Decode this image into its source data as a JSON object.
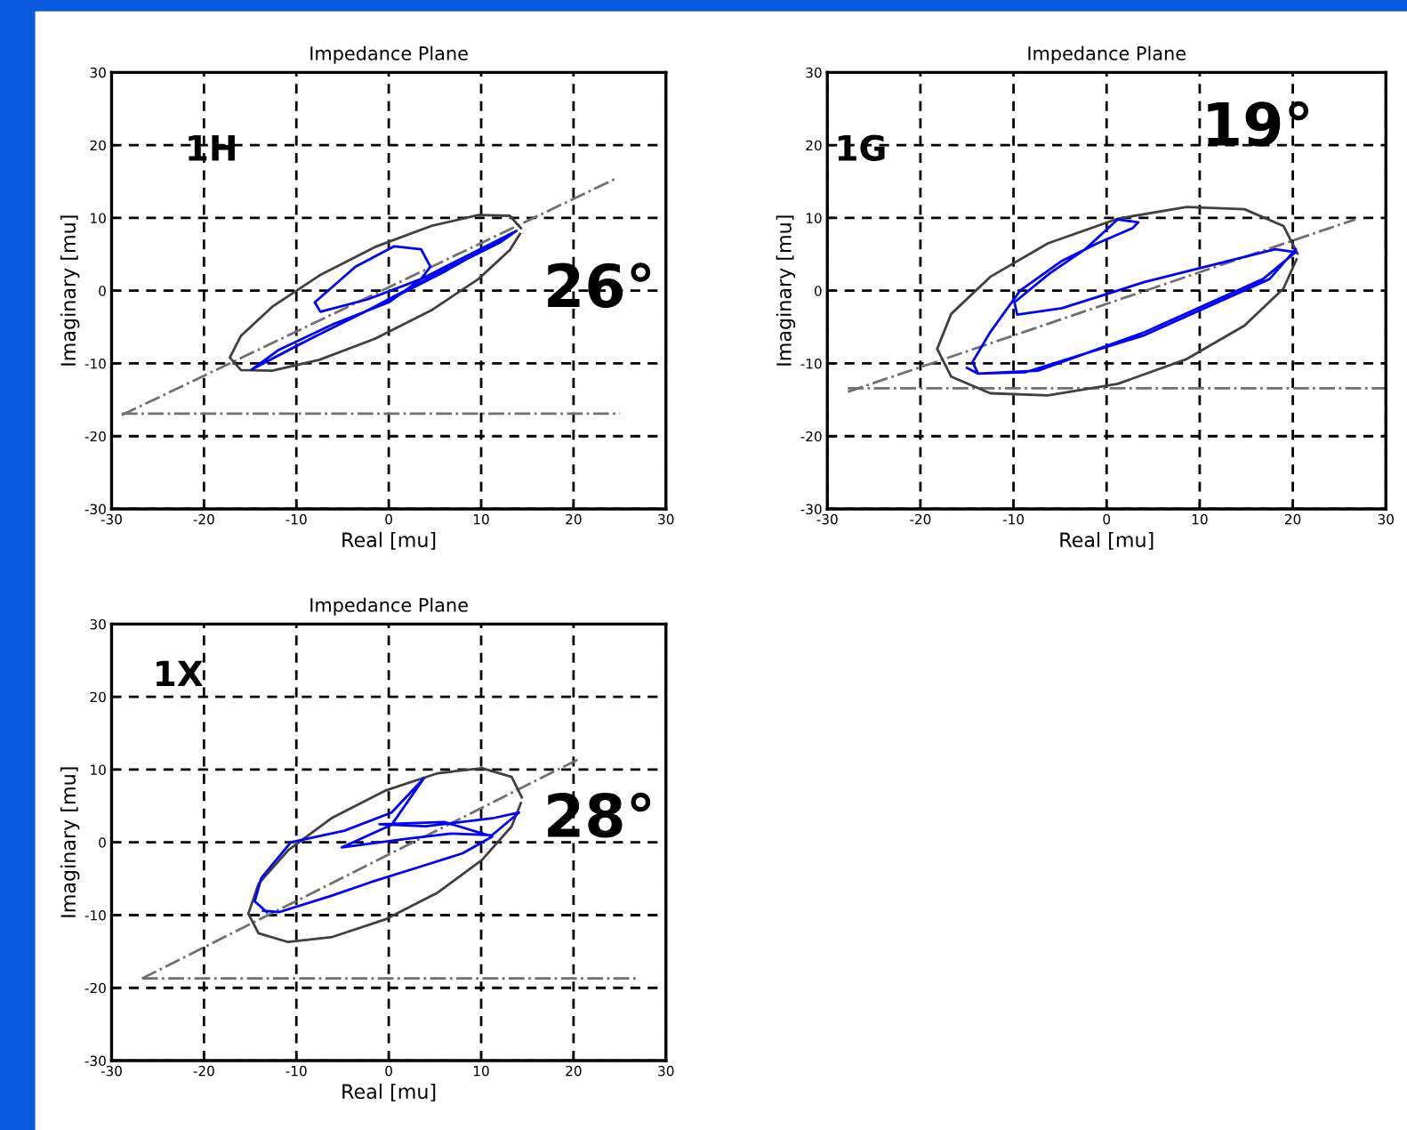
{
  "chart_data": [
    {
      "type": "line",
      "title": "Impedance Plane",
      "xlabel": "Real [mu]",
      "ylabel": "Imaginary [mu]",
      "annotations": [
        "1H",
        "26°"
      ],
      "xlim": [
        -30,
        30
      ],
      "ylim": [
        -30,
        30
      ],
      "xticks": [
        -30,
        -20,
        -10,
        0,
        10,
        20,
        30
      ],
      "yticks": [
        -30,
        -20,
        -10,
        0,
        10,
        20,
        30
      ],
      "grid": true,
      "series": [
        {
          "type": "line",
          "color": "#707070",
          "line_style": "dashed",
          "x": [
            -28.9,
            24.4
          ],
          "values": [
            -17.1,
            15.3
          ]
        },
        {
          "type": "line",
          "color": "#707070",
          "line_style": "dashed",
          "x": [
            -28.9,
            25.0
          ],
          "values": [
            -16.9,
            -16.9
          ]
        },
        {
          "type": "line",
          "color": "#404040",
          "line_style": "solid",
          "x": [
            14.3,
            13.1,
            9.7,
            4.6,
            -1.5,
            -7.5,
            -12.6,
            -16.0,
            -17.2,
            -16.0,
            -12.6,
            -7.5,
            -1.5,
            4.6,
            9.7,
            13.1,
            14.2
          ],
          "values": [
            8.6,
            10.3,
            10.4,
            8.9,
            6.0,
            2.1,
            -2.2,
            -6.2,
            -9.2,
            -10.9,
            -11.0,
            -9.5,
            -6.6,
            -2.7,
            1.6,
            5.6,
            7.8
          ]
        },
        {
          "type": "line",
          "color": "#0000ff",
          "line_style": "solid",
          "x": [
            -14.8,
            -8.0,
            0.0,
            6.0,
            13.8,
            12.0,
            5.0,
            -2.0,
            -10.0,
            -14.8,
            -12.0,
            -6.0,
            0.0,
            3.5,
            4.5,
            3.5,
            0.6,
            -3.6,
            -8.0,
            -7.4,
            -2.3,
            3.5,
            8.0,
            13.8
          ],
          "values": [
            -10.8,
            -6.3,
            -1.3,
            2.6,
            8.2,
            6.6,
            2.2,
            -2.5,
            -7.6,
            -10.8,
            -8.2,
            -4.6,
            -1.6,
            1.6,
            3.3,
            5.7,
            6.1,
            3.3,
            -1.6,
            -2.9,
            -1.2,
            1.6,
            4.5,
            8.2
          ]
        }
      ]
    },
    {
      "type": "line",
      "title": "Impedance Plane",
      "xlabel": "Real [mu]",
      "ylabel": "Imaginary [mu]",
      "annotations": [
        "1G",
        "19°"
      ],
      "xlim": [
        -30,
        30
      ],
      "ylim": [
        -30,
        30
      ],
      "xticks": [
        -30,
        -20,
        -10,
        0,
        10,
        20,
        30
      ],
      "yticks": [
        -30,
        -20,
        -10,
        0,
        10,
        20,
        30
      ],
      "grid": true,
      "series": [
        {
          "type": "line",
          "color": "#707070",
          "line_style": "dashed",
          "x": [
            -27.8,
            26.7
          ],
          "values": [
            -13.9,
            9.8
          ]
        },
        {
          "type": "line",
          "color": "#707070",
          "line_style": "dashed",
          "x": [
            -27.8,
            30.0
          ],
          "values": [
            -13.4,
            -13.4
          ]
        },
        {
          "type": "line",
          "color": "#404040",
          "line_style": "solid",
          "x": [
            20.5,
            19.0,
            14.8,
            8.6,
            1.2,
            -6.3,
            -12.5,
            -16.7,
            -18.2,
            -16.7,
            -12.5,
            -6.3,
            1.2,
            8.6,
            14.8,
            19.0,
            20.4
          ],
          "values": [
            5.1,
            8.9,
            11.2,
            11.5,
            9.9,
            6.5,
            1.9,
            -3.2,
            -8.0,
            -11.8,
            -14.1,
            -14.4,
            -12.8,
            -9.4,
            -4.8,
            0.3,
            4.3
          ]
        },
        {
          "type": "line",
          "color": "#0000ff",
          "line_style": "solid",
          "x": [
            -15.0,
            -13.8,
            -7.4,
            4.1,
            16.8,
            20.3,
            18.1,
            4.1,
            -4.8,
            -9.6,
            -9.9,
            -6.1,
            -2.3,
            1.2,
            3.4,
            2.8,
            -1.0,
            -4.8,
            -9.3,
            -12.5,
            -14.4,
            -13.8,
            -8.7,
            4.1,
            17.5,
            20.3
          ],
          "values": [
            -10.6,
            -11.4,
            -11.0,
            -5.7,
            1.6,
            5.3,
            5.7,
            1.2,
            -2.4,
            -3.3,
            -1.6,
            2.4,
            5.7,
            9.8,
            9.4,
            8.6,
            6.5,
            4.1,
            0.0,
            -5.7,
            -9.8,
            -11.4,
            -11.2,
            -6.1,
            1.6,
            5.7
          ]
        }
      ]
    },
    {
      "type": "line",
      "title": "Impedance Plane",
      "xlabel": "Real [mu]",
      "ylabel": "Imaginary [mu]",
      "annotations": [
        "1X",
        "28°"
      ],
      "xlim": [
        -30,
        30
      ],
      "ylim": [
        -30,
        30
      ],
      "xticks": [
        -30,
        -20,
        -10,
        0,
        10,
        20,
        30
      ],
      "yticks": [
        -30,
        -20,
        -10,
        0,
        10,
        20,
        30
      ],
      "grid": true,
      "series": [
        {
          "type": "line",
          "color": "#707070",
          "line_style": "dashed",
          "x": [
            -26.7,
            20.5
          ],
          "values": [
            -18.7,
            11.4
          ]
        },
        {
          "type": "line",
          "color": "#707070",
          "line_style": "dashed",
          "x": [
            -26.7,
            26.9
          ],
          "values": [
            -18.7,
            -18.7
          ]
        },
        {
          "type": "line",
          "color": "#404040",
          "line_style": "solid",
          "x": [
            14.4,
            13.3,
            10.1,
            5.3,
            -0.4,
            -6.1,
            -10.9,
            -14.1,
            -15.2,
            -14.1,
            -10.9,
            -6.1,
            -0.4,
            5.3,
            10.1,
            13.3,
            14.3
          ],
          "values": [
            6.2,
            9.0,
            10.2,
            9.5,
            7.1,
            3.4,
            -1.1,
            -5.7,
            -9.8,
            -12.5,
            -13.7,
            -13.0,
            -10.6,
            -6.9,
            -2.4,
            2.2,
            5.4
          ]
        },
        {
          "type": "line",
          "color": "#0000ff",
          "line_style": "solid",
          "x": [
            -13.2,
            -14.5,
            -13.8,
            -10.6,
            -4.8,
            0.3,
            3.8,
            0.3,
            -5.1,
            2.0,
            6.7,
            11.2,
            14.1,
            11.2,
            4.0,
            -1.0,
            6.0,
            11.2,
            8.0,
            3.5,
            -2.0,
            -6.1,
            -11.9,
            -13.6
          ],
          "values": [
            -9.6,
            -8.1,
            -4.9,
            0.0,
            1.6,
            4.1,
            8.8,
            2.4,
            -0.7,
            0.5,
            1.2,
            1.0,
            4.1,
            3.3,
            2.2,
            2.5,
            2.8,
            0.8,
            -1.5,
            -3.3,
            -5.5,
            -7.3,
            -9.6,
            -9.4
          ]
        }
      ]
    }
  ]
}
